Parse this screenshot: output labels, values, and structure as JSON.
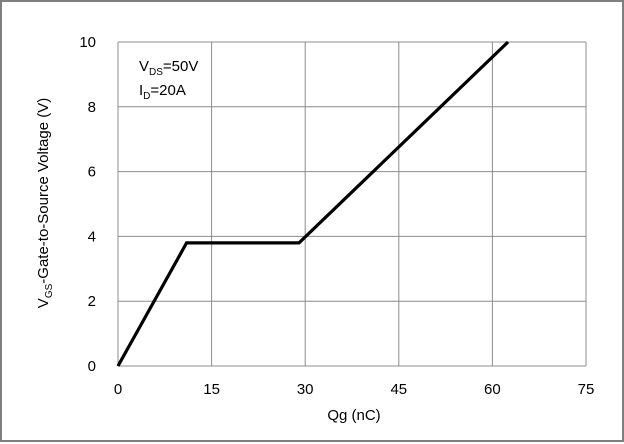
{
  "chart_data": {
    "type": "line",
    "title": "",
    "xlabel": "Qg (nC)",
    "ylabel_main": "V",
    "ylabel_sub": "GS",
    "ylabel_rest": "-Gate-to-Source Voltage (V)",
    "xlim": [
      0,
      75
    ],
    "ylim": [
      0,
      10
    ],
    "xticks": [
      0,
      15,
      30,
      45,
      60,
      75
    ],
    "yticks": [
      0,
      2,
      4,
      6,
      8,
      10
    ],
    "grid": true,
    "series": [
      {
        "x": [
          0,
          11,
          29,
          62.5
        ],
        "y": [
          0,
          3.8,
          3.8,
          10
        ],
        "color": "#000000"
      }
    ],
    "annotations": [
      {
        "main": "V",
        "sub": "DS",
        "rest": "=50V"
      },
      {
        "main": "I",
        "sub": "D",
        "rest": "=20A"
      }
    ]
  }
}
